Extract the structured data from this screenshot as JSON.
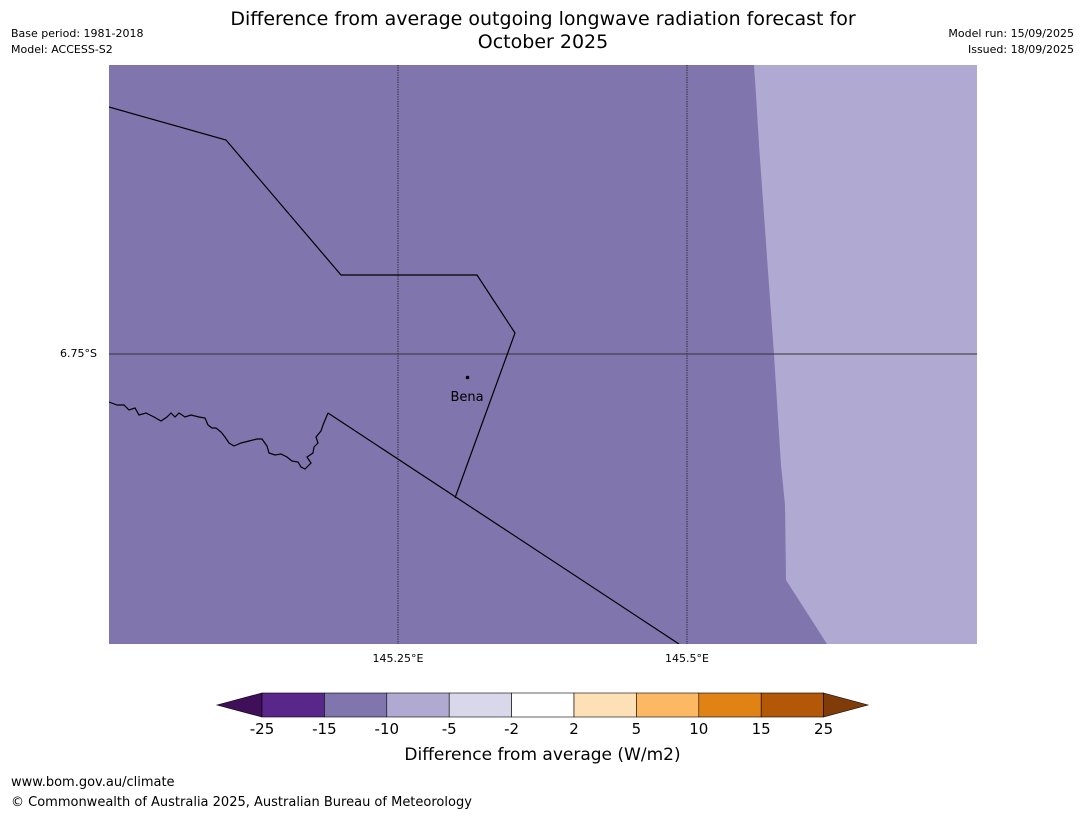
{
  "header": {
    "title_line1": "Difference from average outgoing longwave radiation forecast for",
    "title_line2": "October 2025",
    "base_period": "Base period: 1981-2018",
    "model": "Model: ACCESS-S2",
    "model_run": "Model run: 15/09/2025",
    "issued": "Issued: 18/09/2025"
  },
  "map": {
    "lat_label": "6.75°S",
    "lon_labels": [
      "145.25°E",
      "145.5°E"
    ],
    "place_label": "Bena",
    "colors": {
      "main": "#8075ad",
      "light": "#b0a9d1",
      "border": "#000000",
      "grid": "#333333"
    }
  },
  "colorbar": {
    "label": "Difference from average (W/m2)",
    "ticks": [
      "-25",
      "-15",
      "-10",
      "-5",
      "-2",
      "2",
      "5",
      "10",
      "15",
      "25"
    ],
    "colors": [
      "#3f0f5a",
      "#59278a",
      "#8075ad",
      "#b0a9d1",
      "#d8d8ea",
      "#ffffff",
      "#fee0b6",
      "#fdb863",
      "#e08214",
      "#b35806",
      "#7f3b08"
    ]
  },
  "footer": {
    "url": "www.bom.gov.au/climate",
    "copyright": "© Commonwealth of Australia 2025, Australian Bureau of Meteorology"
  }
}
